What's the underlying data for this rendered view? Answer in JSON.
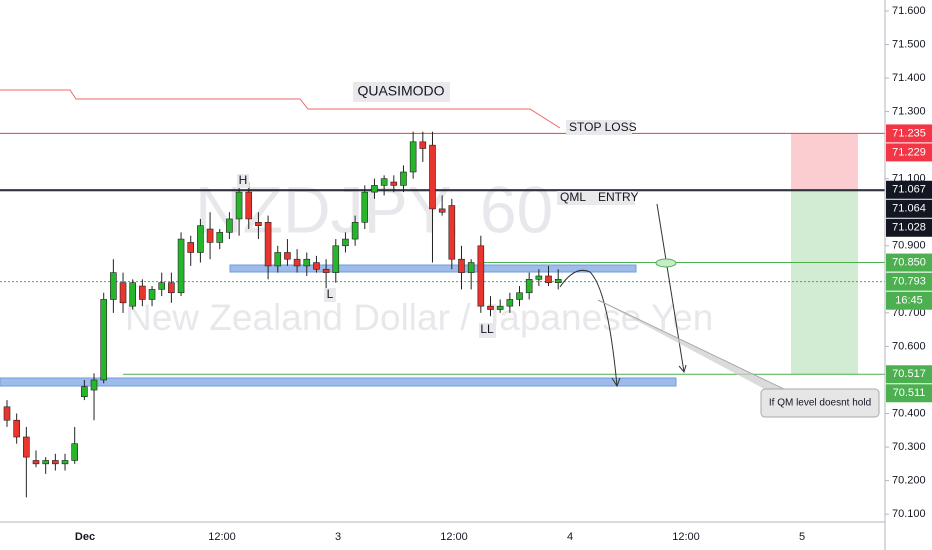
{
  "chart_data": {
    "type": "candlestick",
    "watermark": "NZDJPY, 60",
    "watermark_subtitle": "New Zealand Dollar / Japanese Yen",
    "annotations": {
      "quasimodo": "QUASIMODO",
      "stop_loss": "STOP LOSS",
      "qml": "QML",
      "entry": "ENTRY",
      "h": "H",
      "l": "L",
      "ll": "LL",
      "callout": "If QM level doesnt hold"
    },
    "up_color": "#26b52b",
    "down_color": "#e8352e",
    "ylim": [
      70.0766,
      71.6327
    ],
    "yticks": [
      {
        "value": 71.6,
        "label": "71.600"
      },
      {
        "value": 71.5,
        "label": "71.500"
      },
      {
        "value": 71.4,
        "label": "71.400"
      },
      {
        "value": 71.3,
        "label": "71.300"
      },
      {
        "value": 71.1,
        "label": "71.100"
      },
      {
        "value": 70.9,
        "label": "70.900"
      },
      {
        "value": 70.7,
        "label": "70.700"
      },
      {
        "value": 70.6,
        "label": "70.600"
      },
      {
        "value": 70.4,
        "label": "70.400"
      },
      {
        "value": 70.3,
        "label": "70.300"
      },
      {
        "value": 70.2,
        "label": "70.200"
      },
      {
        "value": 70.1,
        "label": "70.100"
      }
    ],
    "xlabels": [
      "Dec",
      "12:00",
      "3",
      "12:00",
      "4",
      "12:00",
      "5"
    ],
    "price_tags": [
      {
        "value": 71.235,
        "label": "71.235",
        "color": "#f23645"
      },
      {
        "value": 71.229,
        "label": "71.229",
        "color": "#f23645"
      },
      {
        "value": 71.067,
        "label": "71.067",
        "color": "#131722"
      },
      {
        "value": 71.064,
        "label": "71.064",
        "color": "#131722"
      },
      {
        "value": 71.028,
        "label": "71.028",
        "color": "#131722"
      },
      {
        "value": 70.85,
        "label": "70.850",
        "color": "#4caf50"
      },
      {
        "value": 70.793,
        "label": "70.793",
        "color": "#4caf50"
      },
      {
        "value": 70.517,
        "label": "70.517",
        "color": "#4caf50"
      },
      {
        "value": 70.511,
        "label": "70.511",
        "color": "#4caf50"
      }
    ],
    "countdown": "16:45",
    "candles": [
      [
        70.42,
        70.44,
        70.36,
        70.38
      ],
      [
        70.38,
        70.4,
        70.31,
        70.33
      ],
      [
        70.33,
        70.36,
        70.15,
        70.27
      ],
      [
        70.26,
        70.29,
        70.24,
        70.25
      ],
      [
        70.25,
        70.27,
        70.22,
        70.26
      ],
      [
        70.26,
        70.28,
        70.23,
        70.25
      ],
      [
        70.25,
        70.28,
        70.23,
        70.26
      ],
      [
        70.26,
        70.36,
        70.25,
        70.31
      ],
      [
        70.45,
        70.5,
        70.44,
        70.48
      ],
      [
        70.47,
        70.52,
        70.38,
        70.5
      ],
      [
        70.5,
        70.76,
        70.49,
        70.74
      ],
      [
        70.74,
        70.86,
        70.7,
        70.82
      ],
      [
        70.79,
        70.82,
        70.7,
        70.73
      ],
      [
        70.72,
        70.8,
        70.71,
        70.79
      ],
      [
        70.78,
        70.8,
        70.72,
        70.74
      ],
      [
        70.74,
        70.78,
        70.72,
        70.77
      ],
      [
        70.77,
        70.82,
        70.75,
        70.79
      ],
      [
        70.79,
        70.82,
        70.73,
        70.76
      ],
      [
        70.76,
        70.94,
        70.75,
        70.92
      ],
      [
        70.91,
        70.93,
        70.84,
        70.88
      ],
      [
        70.88,
        70.98,
        70.85,
        70.96
      ],
      [
        70.95,
        71.0,
        70.86,
        70.91
      ],
      [
        70.91,
        70.95,
        70.89,
        70.94
      ],
      [
        70.94,
        71.0,
        70.92,
        70.98
      ],
      [
        70.98,
        71.08,
        70.93,
        71.06
      ],
      [
        71.06,
        71.09,
        70.95,
        70.98
      ],
      [
        70.97,
        71.0,
        70.92,
        70.96
      ],
      [
        70.97,
        70.99,
        70.8,
        70.84
      ],
      [
        70.84,
        70.9,
        70.82,
        70.88
      ],
      [
        70.88,
        70.92,
        70.84,
        70.86
      ],
      [
        70.86,
        70.89,
        70.82,
        70.84
      ],
      [
        70.84,
        70.88,
        70.81,
        70.86
      ],
      [
        70.85,
        70.87,
        70.82,
        70.83
      ],
      [
        70.83,
        70.86,
        70.76,
        70.82
      ],
      [
        70.82,
        70.92,
        70.79,
        70.9
      ],
      [
        70.9,
        70.94,
        70.88,
        70.92
      ],
      [
        70.92,
        70.99,
        70.9,
        70.97
      ],
      [
        70.97,
        71.08,
        70.95,
        71.06
      ],
      [
        71.06,
        71.1,
        71.04,
        71.08
      ],
      [
        71.08,
        71.11,
        71.05,
        71.1
      ],
      [
        71.09,
        71.11,
        71.06,
        71.08
      ],
      [
        71.08,
        71.14,
        71.06,
        71.12
      ],
      [
        71.12,
        71.24,
        71.1,
        71.21
      ],
      [
        71.21,
        71.24,
        71.15,
        71.19
      ],
      [
        71.2,
        71.24,
        70.85,
        71.01
      ],
      [
        71.01,
        71.05,
        70.99,
        71.0
      ],
      [
        71.02,
        71.04,
        70.83,
        70.86
      ],
      [
        70.86,
        70.9,
        70.77,
        70.82
      ],
      [
        70.82,
        70.86,
        70.77,
        70.85
      ],
      [
        70.9,
        70.93,
        70.7,
        70.72
      ],
      [
        70.72,
        70.75,
        70.69,
        70.71
      ],
      [
        70.71,
        70.74,
        70.7,
        70.72
      ],
      [
        70.72,
        70.76,
        70.7,
        70.74
      ],
      [
        70.74,
        70.78,
        70.72,
        70.76
      ],
      [
        70.76,
        70.82,
        70.74,
        70.8
      ],
      [
        70.8,
        70.83,
        70.78,
        70.81
      ],
      [
        70.81,
        70.84,
        70.78,
        70.79
      ],
      [
        70.79,
        70.83,
        70.77,
        70.8
      ]
    ]
  }
}
